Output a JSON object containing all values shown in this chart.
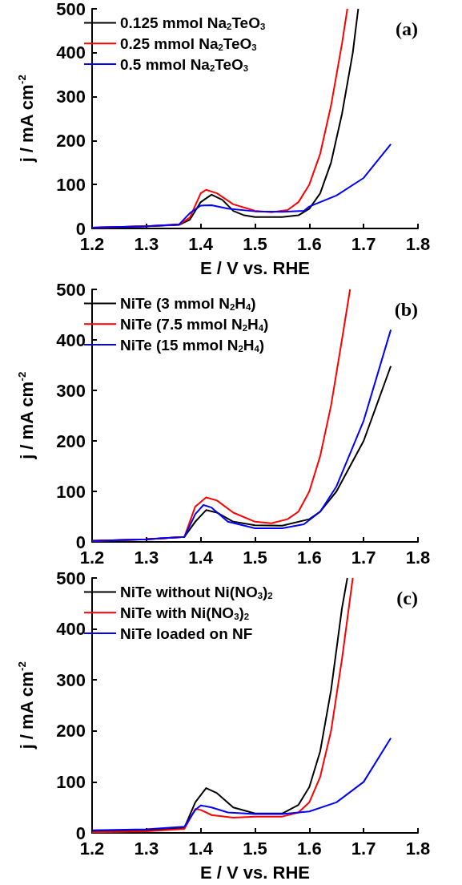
{
  "chart_data": [
    {
      "type": "line",
      "xlabel": "E / V vs. RHE",
      "ylabel": "j / mA cm$^{-2}$",
      "annotations": [
        "(a)"
      ],
      "xlim": [
        1.2,
        1.8
      ],
      "xticks": [
        1.2,
        1.3,
        1.4,
        1.5,
        1.6,
        1.7,
        1.8
      ],
      "ylim": [
        0,
        500
      ],
      "yticks": [
        0,
        100,
        200,
        300,
        400,
        500
      ],
      "legend": "top left",
      "grid": false,
      "series": [
        {
          "name": "0.125 mmol Na$_{2}$TeO$_{3}$",
          "color": "#000000",
          "x": [
            1.2,
            1.3,
            1.36,
            1.38,
            1.4,
            1.42,
            1.44,
            1.46,
            1.48,
            1.5,
            1.55,
            1.58,
            1.6,
            1.62,
            1.64,
            1.66,
            1.68,
            1.69
          ],
          "values": [
            2,
            5,
            8,
            20,
            60,
            77,
            65,
            40,
            30,
            26,
            26,
            30,
            45,
            80,
            150,
            260,
            400,
            500
          ]
        },
        {
          "name": "0.25 mmol Na$_{2}$TeO$_{3}$",
          "color": "#ff0000",
          "x": [
            1.2,
            1.3,
            1.36,
            1.38,
            1.4,
            1.41,
            1.43,
            1.46,
            1.5,
            1.53,
            1.56,
            1.58,
            1.6,
            1.62,
            1.64,
            1.66,
            1.67
          ],
          "values": [
            2,
            5,
            9,
            25,
            80,
            88,
            80,
            55,
            40,
            37,
            42,
            60,
            100,
            170,
            280,
            420,
            500
          ]
        },
        {
          "name": "0.5 mmol Na$_{2}$TeO$_{3}$",
          "color": "#0000ff",
          "x": [
            1.2,
            1.3,
            1.36,
            1.38,
            1.4,
            1.42,
            1.45,
            1.5,
            1.55,
            1.59,
            1.6,
            1.65,
            1.7,
            1.75
          ],
          "values": [
            2,
            5,
            9,
            35,
            52,
            53,
            45,
            39,
            38,
            40,
            50,
            75,
            115,
            192
          ]
        }
      ]
    },
    {
      "type": "line",
      "ylabel": "j / mA cm$^{-2}$",
      "annotations": [
        "(b)"
      ],
      "xlim": [
        1.2,
        1.8
      ],
      "xticks": [
        1.2,
        1.3,
        1.4,
        1.5,
        1.6,
        1.7,
        1.8
      ],
      "ylim": [
        0,
        500
      ],
      "yticks": [
        0,
        100,
        200,
        300,
        400,
        500
      ],
      "legend": "top left",
      "grid": false,
      "series": [
        {
          "name": "NiTe (3 mmol N$_{2}$H$_{4}$)",
          "color": "#000000",
          "x": [
            1.2,
            1.3,
            1.37,
            1.39,
            1.41,
            1.43,
            1.46,
            1.5,
            1.55,
            1.6,
            1.62,
            1.65,
            1.7,
            1.75
          ],
          "values": [
            2,
            5,
            10,
            40,
            63,
            58,
            40,
            33,
            32,
            45,
            60,
            100,
            200,
            348
          ]
        },
        {
          "name": "NiTe (7.5 mmol N$_{2}$H$_{4}$)",
          "color": "#ff0000",
          "x": [
            1.2,
            1.3,
            1.37,
            1.39,
            1.41,
            1.43,
            1.46,
            1.5,
            1.53,
            1.56,
            1.58,
            1.6,
            1.62,
            1.64,
            1.66,
            1.675
          ],
          "values": [
            2,
            5,
            10,
            70,
            88,
            82,
            58,
            40,
            37,
            45,
            60,
            100,
            170,
            270,
            400,
            500
          ]
        },
        {
          "name": "NiTe (15 mmol N$_{2}$H$_{4}$)",
          "color": "#0000ff",
          "x": [
            1.2,
            1.3,
            1.37,
            1.39,
            1.405,
            1.42,
            1.45,
            1.5,
            1.55,
            1.59,
            1.62,
            1.65,
            1.7,
            1.75
          ],
          "values": [
            2,
            5,
            10,
            55,
            73,
            68,
            40,
            27,
            27,
            35,
            60,
            110,
            240,
            420
          ]
        }
      ]
    },
    {
      "type": "line",
      "xlabel": "E / V vs. RHE",
      "ylabel": "j / mA cm$^{-2}$",
      "annotations": [
        "(c)"
      ],
      "xlim": [
        1.2,
        1.8
      ],
      "xticks": [
        1.2,
        1.3,
        1.4,
        1.5,
        1.6,
        1.7,
        1.8
      ],
      "ylim": [
        0,
        500
      ],
      "yticks": [
        0,
        100,
        200,
        300,
        400,
        500
      ],
      "legend": "top left",
      "grid": false,
      "series": [
        {
          "name": "NiTe without Ni(NO$_{3}$)$_{2}$",
          "color": "#000000",
          "x": [
            1.2,
            1.3,
            1.37,
            1.39,
            1.41,
            1.43,
            1.46,
            1.5,
            1.55,
            1.58,
            1.6,
            1.62,
            1.64,
            1.66,
            1.67
          ],
          "values": [
            3,
            5,
            10,
            60,
            88,
            78,
            50,
            38,
            38,
            55,
            90,
            160,
            280,
            440,
            500
          ]
        },
        {
          "name": "NiTe with Ni(NO$_{3}$)$_{2}$",
          "color": "#ff0000",
          "x": [
            1.2,
            1.3,
            1.37,
            1.39,
            1.4,
            1.42,
            1.46,
            1.5,
            1.55,
            1.58,
            1.6,
            1.62,
            1.64,
            1.66,
            1.68
          ],
          "values": [
            1,
            3,
            8,
            47,
            45,
            35,
            30,
            32,
            32,
            40,
            60,
            110,
            200,
            340,
            500
          ]
        },
        {
          "name": "NiTe loaded on NF",
          "color": "#0000ff",
          "x": [
            1.2,
            1.3,
            1.37,
            1.39,
            1.4,
            1.42,
            1.45,
            1.5,
            1.55,
            1.6,
            1.65,
            1.7,
            1.75
          ],
          "values": [
            5,
            7,
            12,
            45,
            54,
            50,
            40,
            37,
            37,
            42,
            60,
            100,
            186
          ]
        }
      ]
    }
  ]
}
